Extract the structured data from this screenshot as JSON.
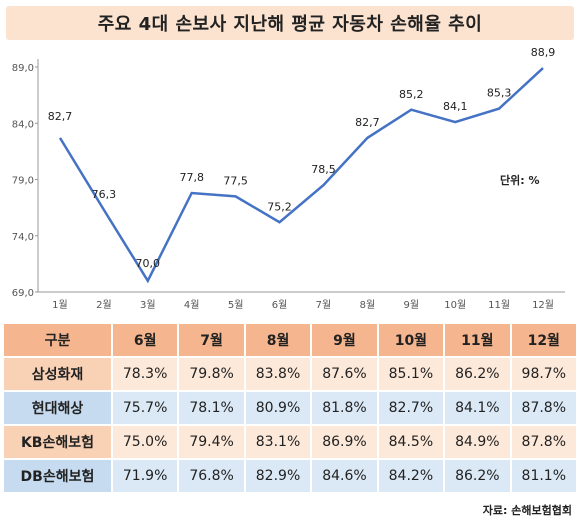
{
  "title": "주요 4대 손보사 지난해 평균 자동차 손해율 추이",
  "chart_data": {
    "type": "line",
    "categories": [
      "1월",
      "2월",
      "3월",
      "4월",
      "5월",
      "6월",
      "7월",
      "8월",
      "9월",
      "10월",
      "11월",
      "12월"
    ],
    "values": [
      82.7,
      76.3,
      70.0,
      77.8,
      77.5,
      75.2,
      78.5,
      82.7,
      85.2,
      84.1,
      85.3,
      88.9
    ],
    "value_labels": [
      "82,7",
      "76,3",
      "70,0",
      "77,8",
      "77,5",
      "75,2",
      "78,5",
      "82,7",
      "85,2",
      "84,1",
      "85,3",
      "88,9"
    ],
    "yticks": [
      "69,0",
      "74,0",
      "79,0",
      "84,0",
      "89,0"
    ],
    "ylim": [
      69,
      89
    ],
    "line_color": "#4472c4",
    "unit_label": "단위: %"
  },
  "table": {
    "header": [
      "구분",
      "6월",
      "7월",
      "8월",
      "9월",
      "10월",
      "11월",
      "12월"
    ],
    "rows": [
      {
        "label": "삼성화재",
        "values": [
          "78.3%",
          "79.8%",
          "83.8%",
          "87.6%",
          "85.1%",
          "86.2%",
          "98.7%"
        ]
      },
      {
        "label": "현대해상",
        "values": [
          "75.7%",
          "78.1%",
          "80.9%",
          "81.8%",
          "82.7%",
          "84.1%",
          "87.8%"
        ]
      },
      {
        "label": "KB손해보험",
        "values": [
          "75.0%",
          "79.4%",
          "83.1%",
          "86.9%",
          "84.5%",
          "84.9%",
          "87.8%"
        ]
      },
      {
        "label": "DB손해보험",
        "values": [
          "71.9%",
          "76.8%",
          "82.9%",
          "84.6%",
          "84.2%",
          "86.2%",
          "81.1%"
        ]
      }
    ]
  },
  "source": "자료: 손해보험협회"
}
